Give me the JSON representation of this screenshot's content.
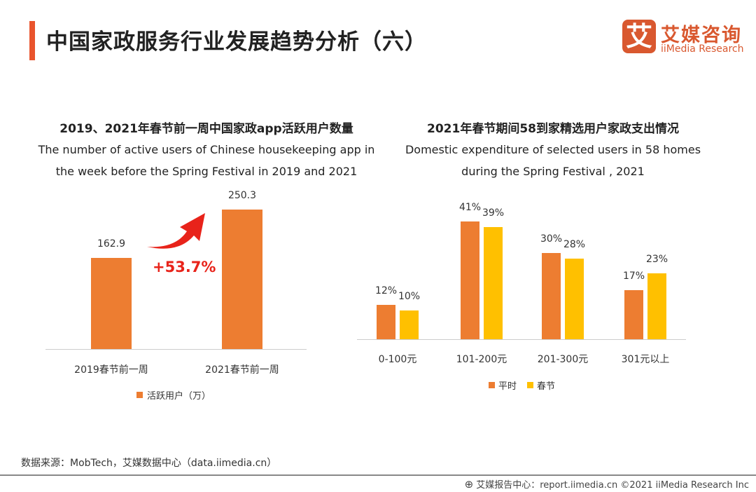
{
  "header": {
    "title": "中国家政服务行业发展趋势分析（六）",
    "logo_mark": "艾",
    "logo_cn": "艾媒咨询",
    "logo_en": "iiMedia Research"
  },
  "colors": {
    "accent": "#E9542D",
    "orange": "#ED7D31",
    "yellow": "#FFC000",
    "growth_red": "#E8231A"
  },
  "chart_data": [
    {
      "type": "bar",
      "title": "2019、2021年春节前一周中国家政app活跃用户数量",
      "subtitle": [
        "The number of active users of Chinese housekeeping app in",
        "the week before the Spring Festival in 2019 and 2021"
      ],
      "categories": [
        "2019春节前一周",
        "2021春节前一周"
      ],
      "series": [
        {
          "name": "活跃用户（万）",
          "values": [
            162.9,
            250.3
          ],
          "labels": [
            "162.9",
            "250.3"
          ]
        }
      ],
      "annotation": "+53.7%",
      "legend": "bottom"
    },
    {
      "type": "bar",
      "title": "2021年春节期间58到家精选用户家政支出情况",
      "subtitle": [
        "Domestic expenditure of selected users in 58 homes",
        "during the Spring Festival , 2021"
      ],
      "categories": [
        "0-100元",
        "101-200元",
        "201-300元",
        "301元以上"
      ],
      "series": [
        {
          "name": "平时",
          "values": [
            12,
            41,
            30,
            17
          ],
          "labels": [
            "12%",
            "41%",
            "30%",
            "17%"
          ]
        },
        {
          "name": "春节",
          "values": [
            10,
            39,
            28,
            23
          ],
          "labels": [
            "10%",
            "39%",
            "28%",
            "23%"
          ]
        }
      ],
      "legend": "bottom"
    }
  ],
  "footer": {
    "source": "数据来源：MobTech，艾媒数据中心（data.iimedia.cn）",
    "copyright": "艾媒报告中心：report.iimedia.cn  ©2021  iiMedia Research  Inc"
  }
}
